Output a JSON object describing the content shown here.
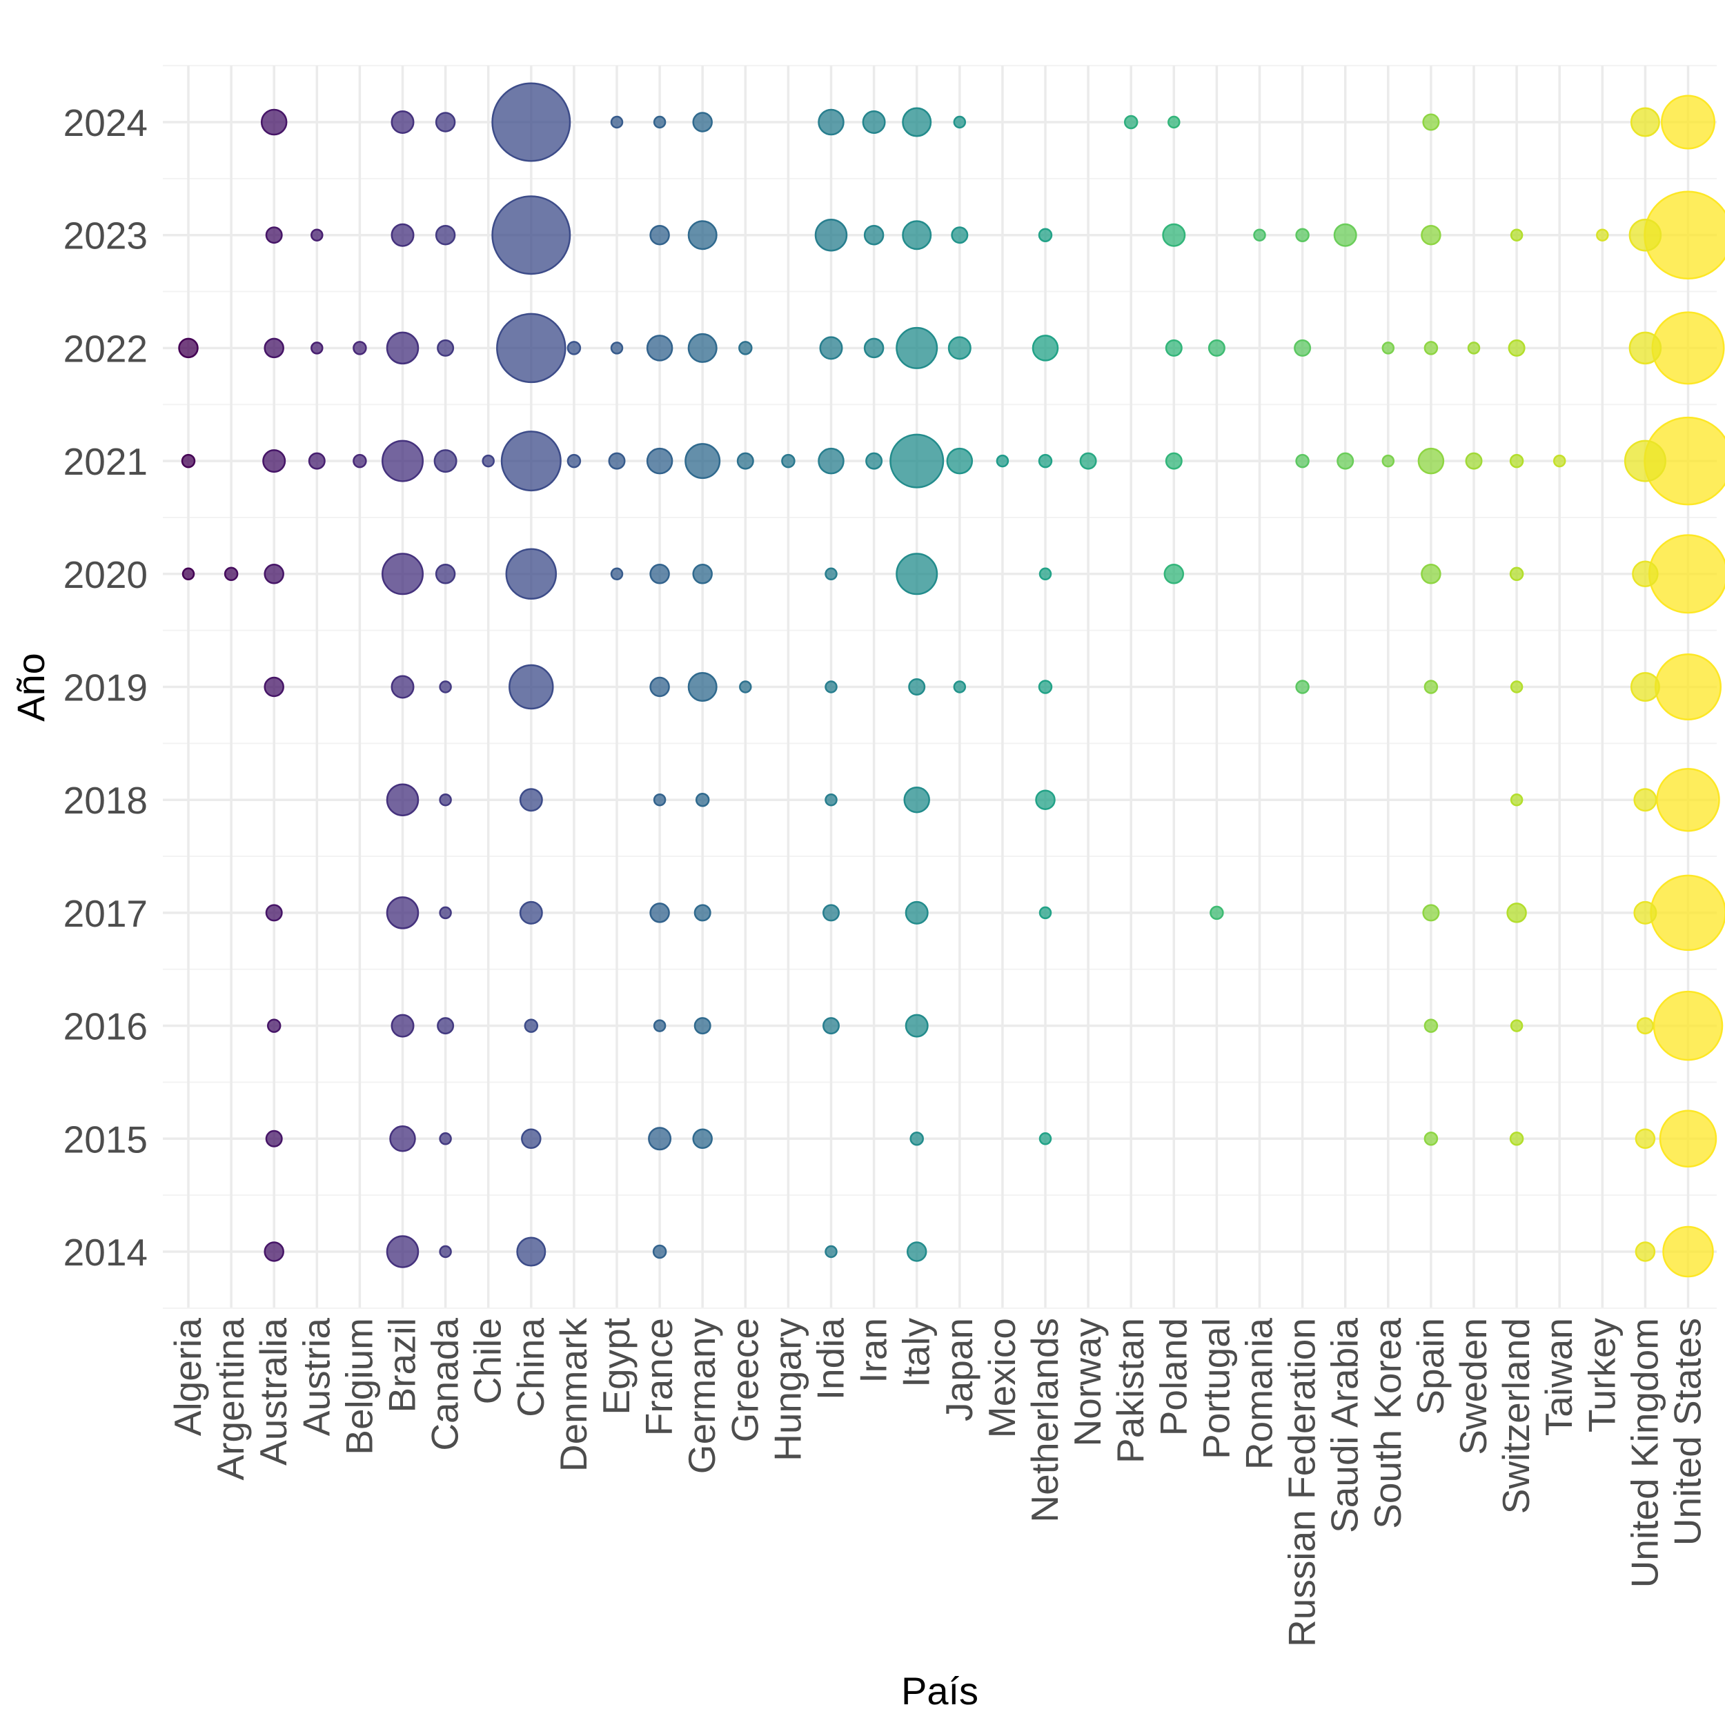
{
  "chart_data": {
    "type": "scatter",
    "xlabel": "País",
    "ylabel": "Año",
    "categories": [
      "Algeria",
      "Argentina",
      "Australia",
      "Austria",
      "Belgium",
      "Brazil",
      "Canada",
      "Chile",
      "China",
      "Denmark",
      "Egypt",
      "France",
      "Germany",
      "Greece",
      "Hungary",
      "India",
      "Iran",
      "Italy",
      "Japan",
      "Mexico",
      "Netherlands",
      "Norway",
      "Pakistan",
      "Poland",
      "Portugal",
      "Romania",
      "Russian Federation",
      "Saudi Arabia",
      "South Korea",
      "Spain",
      "Sweden",
      "Switzerland",
      "Taiwan",
      "Turkey",
      "United Kingdom",
      "United States"
    ],
    "y_ticks": [
      2014,
      2015,
      2016,
      2017,
      2018,
      2019,
      2020,
      2021,
      2022,
      2023,
      2024
    ],
    "color_scale": "viridis",
    "size_encoding": "relative count",
    "grid": true,
    "legend": "none",
    "points": [
      {
        "country": "Algeria",
        "year": 2020,
        "size": 1
      },
      {
        "country": "Algeria",
        "year": 2021,
        "size": 2
      },
      {
        "country": "Algeria",
        "year": 2022,
        "size": 3
      },
      {
        "country": "Argentina",
        "year": 2020,
        "size": 2
      },
      {
        "country": "Australia",
        "year": 2014,
        "size": 3
      },
      {
        "country": "Australia",
        "year": 2015,
        "size": 2.5
      },
      {
        "country": "Australia",
        "year": 2016,
        "size": 2
      },
      {
        "country": "Australia",
        "year": 2017,
        "size": 2.5
      },
      {
        "country": "Australia",
        "year": 2019,
        "size": 3
      },
      {
        "country": "Australia",
        "year": 2020,
        "size": 3
      },
      {
        "country": "Australia",
        "year": 2021,
        "size": 3.5
      },
      {
        "country": "Australia",
        "year": 2022,
        "size": 3
      },
      {
        "country": "Australia",
        "year": 2023,
        "size": 2.5
      },
      {
        "country": "Australia",
        "year": 2024,
        "size": 4
      },
      {
        "country": "Austria",
        "year": 2021,
        "size": 2.5
      },
      {
        "country": "Austria",
        "year": 2022,
        "size": 1
      },
      {
        "country": "Austria",
        "year": 2023,
        "size": 1
      },
      {
        "country": "Belgium",
        "year": 2021,
        "size": 2
      },
      {
        "country": "Belgium",
        "year": 2022,
        "size": 2
      },
      {
        "country": "Brazil",
        "year": 2014,
        "size": 5
      },
      {
        "country": "Brazil",
        "year": 2015,
        "size": 4
      },
      {
        "country": "Brazil",
        "year": 2016,
        "size": 3.5
      },
      {
        "country": "Brazil",
        "year": 2017,
        "size": 5
      },
      {
        "country": "Brazil",
        "year": 2018,
        "size": 5
      },
      {
        "country": "Brazil",
        "year": 2019,
        "size": 3.5
      },
      {
        "country": "Brazil",
        "year": 2020,
        "size": 6.5
      },
      {
        "country": "Brazil",
        "year": 2021,
        "size": 6.5
      },
      {
        "country": "Brazil",
        "year": 2022,
        "size": 5
      },
      {
        "country": "Brazil",
        "year": 2023,
        "size": 3.5
      },
      {
        "country": "Brazil",
        "year": 2024,
        "size": 3.5
      },
      {
        "country": "Canada",
        "year": 2014,
        "size": 1.5
      },
      {
        "country": "Canada",
        "year": 2015,
        "size": 1.5
      },
      {
        "country": "Canada",
        "year": 2016,
        "size": 2.5
      },
      {
        "country": "Canada",
        "year": 2017,
        "size": 1.5
      },
      {
        "country": "Canada",
        "year": 2018,
        "size": 1.5
      },
      {
        "country": "Canada",
        "year": 2019,
        "size": 1.5
      },
      {
        "country": "Canada",
        "year": 2020,
        "size": 3
      },
      {
        "country": "Canada",
        "year": 2021,
        "size": 3.5
      },
      {
        "country": "Canada",
        "year": 2022,
        "size": 2.5
      },
      {
        "country": "Canada",
        "year": 2023,
        "size": 3
      },
      {
        "country": "Canada",
        "year": 2024,
        "size": 3
      },
      {
        "country": "Chile",
        "year": 2021,
        "size": 1.5
      },
      {
        "country": "China",
        "year": 2014,
        "size": 4.5
      },
      {
        "country": "China",
        "year": 2015,
        "size": 3
      },
      {
        "country": "China",
        "year": 2016,
        "size": 2
      },
      {
        "country": "China",
        "year": 2017,
        "size": 3.5
      },
      {
        "country": "China",
        "year": 2018,
        "size": 3.5
      },
      {
        "country": "China",
        "year": 2019,
        "size": 7
      },
      {
        "country": "China",
        "year": 2020,
        "size": 8
      },
      {
        "country": "China",
        "year": 2021,
        "size": 9.5
      },
      {
        "country": "China",
        "year": 2022,
        "size": 11
      },
      {
        "country": "China",
        "year": 2023,
        "size": 12.5
      },
      {
        "country": "China",
        "year": 2024,
        "size": 12.5
      },
      {
        "country": "Denmark",
        "year": 2021,
        "size": 2
      },
      {
        "country": "Denmark",
        "year": 2022,
        "size": 2
      },
      {
        "country": "Egypt",
        "year": 2020,
        "size": 1.5
      },
      {
        "country": "Egypt",
        "year": 2021,
        "size": 2.5
      },
      {
        "country": "Egypt",
        "year": 2022,
        "size": 1.5
      },
      {
        "country": "Egypt",
        "year": 2024,
        "size": 1
      },
      {
        "country": "France",
        "year": 2014,
        "size": 2
      },
      {
        "country": "France",
        "year": 2015,
        "size": 3.5
      },
      {
        "country": "France",
        "year": 2016,
        "size": 1
      },
      {
        "country": "France",
        "year": 2017,
        "size": 3
      },
      {
        "country": "France",
        "year": 2018,
        "size": 1
      },
      {
        "country": "France",
        "year": 2019,
        "size": 3
      },
      {
        "country": "France",
        "year": 2020,
        "size": 3
      },
      {
        "country": "France",
        "year": 2021,
        "size": 4
      },
      {
        "country": "France",
        "year": 2022,
        "size": 4
      },
      {
        "country": "France",
        "year": 2023,
        "size": 3
      },
      {
        "country": "France",
        "year": 2024,
        "size": 1
      },
      {
        "country": "Germany",
        "year": 2015,
        "size": 3
      },
      {
        "country": "Germany",
        "year": 2016,
        "size": 2.5
      },
      {
        "country": "Germany",
        "year": 2017,
        "size": 2.5
      },
      {
        "country": "Germany",
        "year": 2018,
        "size": 2
      },
      {
        "country": "Germany",
        "year": 2019,
        "size": 4.5
      },
      {
        "country": "Germany",
        "year": 2020,
        "size": 3
      },
      {
        "country": "Germany",
        "year": 2021,
        "size": 5.5
      },
      {
        "country": "Germany",
        "year": 2022,
        "size": 4.5
      },
      {
        "country": "Germany",
        "year": 2023,
        "size": 4.5
      },
      {
        "country": "Germany",
        "year": 2024,
        "size": 3
      },
      {
        "country": "Greece",
        "year": 2019,
        "size": 1
      },
      {
        "country": "Greece",
        "year": 2021,
        "size": 2.5
      },
      {
        "country": "Greece",
        "year": 2022,
        "size": 2
      },
      {
        "country": "Hungary",
        "year": 2021,
        "size": 2
      },
      {
        "country": "India",
        "year": 2014,
        "size": 1.5
      },
      {
        "country": "India",
        "year": 2016,
        "size": 2.5
      },
      {
        "country": "India",
        "year": 2017,
        "size": 2.5
      },
      {
        "country": "India",
        "year": 2018,
        "size": 1
      },
      {
        "country": "India",
        "year": 2019,
        "size": 1.5
      },
      {
        "country": "India",
        "year": 2020,
        "size": 1.5
      },
      {
        "country": "India",
        "year": 2021,
        "size": 4
      },
      {
        "country": "India",
        "year": 2022,
        "size": 3.5
      },
      {
        "country": "India",
        "year": 2023,
        "size": 5
      },
      {
        "country": "India",
        "year": 2024,
        "size": 4
      },
      {
        "country": "Iran",
        "year": 2021,
        "size": 2.5
      },
      {
        "country": "Iran",
        "year": 2022,
        "size": 3
      },
      {
        "country": "Iran",
        "year": 2023,
        "size": 3
      },
      {
        "country": "Iran",
        "year": 2024,
        "size": 3.5
      },
      {
        "country": "Italy",
        "year": 2014,
        "size": 3
      },
      {
        "country": "Italy",
        "year": 2015,
        "size": 2
      },
      {
        "country": "Italy",
        "year": 2016,
        "size": 3.5
      },
      {
        "country": "Italy",
        "year": 2017,
        "size": 3.5
      },
      {
        "country": "Italy",
        "year": 2018,
        "size": 4
      },
      {
        "country": "Italy",
        "year": 2019,
        "size": 2.5
      },
      {
        "country": "Italy",
        "year": 2020,
        "size": 6.5
      },
      {
        "country": "Italy",
        "year": 2021,
        "size": 8.5
      },
      {
        "country": "Italy",
        "year": 2022,
        "size": 6.5
      },
      {
        "country": "Italy",
        "year": 2023,
        "size": 4.5
      },
      {
        "country": "Italy",
        "year": 2024,
        "size": 4.5
      },
      {
        "country": "Japan",
        "year": 2019,
        "size": 1
      },
      {
        "country": "Japan",
        "year": 2021,
        "size": 4
      },
      {
        "country": "Japan",
        "year": 2022,
        "size": 3.5
      },
      {
        "country": "Japan",
        "year": 2023,
        "size": 2.5
      },
      {
        "country": "Japan",
        "year": 2024,
        "size": 1
      },
      {
        "country": "Mexico",
        "year": 2021,
        "size": 1
      },
      {
        "country": "Netherlands",
        "year": 2015,
        "size": 1.5
      },
      {
        "country": "Netherlands",
        "year": 2017,
        "size": 1
      },
      {
        "country": "Netherlands",
        "year": 2018,
        "size": 3
      },
      {
        "country": "Netherlands",
        "year": 2019,
        "size": 2
      },
      {
        "country": "Netherlands",
        "year": 2020,
        "size": 1
      },
      {
        "country": "Netherlands",
        "year": 2021,
        "size": 2
      },
      {
        "country": "Netherlands",
        "year": 2022,
        "size": 4
      },
      {
        "country": "Netherlands",
        "year": 2023,
        "size": 2
      },
      {
        "country": "Norway",
        "year": 2021,
        "size": 2.5
      },
      {
        "country": "Pakistan",
        "year": 2024,
        "size": 2
      },
      {
        "country": "Poland",
        "year": 2020,
        "size": 3
      },
      {
        "country": "Poland",
        "year": 2021,
        "size": 2.5
      },
      {
        "country": "Poland",
        "year": 2022,
        "size": 2.5
      },
      {
        "country": "Poland",
        "year": 2023,
        "size": 3.5
      },
      {
        "country": "Poland",
        "year": 2024,
        "size": 1
      },
      {
        "country": "Portugal",
        "year": 2017,
        "size": 2
      },
      {
        "country": "Portugal",
        "year": 2022,
        "size": 2.5
      },
      {
        "country": "Romania",
        "year": 2023,
        "size": 1
      },
      {
        "country": "Russian Federation",
        "year": 2019,
        "size": 2
      },
      {
        "country": "Russian Federation",
        "year": 2021,
        "size": 2
      },
      {
        "country": "Russian Federation",
        "year": 2022,
        "size": 2.5
      },
      {
        "country": "Russian Federation",
        "year": 2023,
        "size": 2
      },
      {
        "country": "Saudi Arabia",
        "year": 2021,
        "size": 2.5
      },
      {
        "country": "Saudi Arabia",
        "year": 2023,
        "size": 3.5
      },
      {
        "country": "South Korea",
        "year": 2021,
        "size": 1
      },
      {
        "country": "South Korea",
        "year": 2022,
        "size": 1
      },
      {
        "country": "Spain",
        "year": 2015,
        "size": 2
      },
      {
        "country": "Spain",
        "year": 2016,
        "size": 2
      },
      {
        "country": "Spain",
        "year": 2017,
        "size": 2.5
      },
      {
        "country": "Spain",
        "year": 2019,
        "size": 2
      },
      {
        "country": "Spain",
        "year": 2020,
        "size": 3
      },
      {
        "country": "Spain",
        "year": 2021,
        "size": 4
      },
      {
        "country": "Spain",
        "year": 2022,
        "size": 2
      },
      {
        "country": "Spain",
        "year": 2023,
        "size": 3
      },
      {
        "country": "Spain",
        "year": 2024,
        "size": 2.5
      },
      {
        "country": "Sweden",
        "year": 2021,
        "size": 2.5
      },
      {
        "country": "Sweden",
        "year": 2022,
        "size": 1
      },
      {
        "country": "Switzerland",
        "year": 2015,
        "size": 2
      },
      {
        "country": "Switzerland",
        "year": 2016,
        "size": 1
      },
      {
        "country": "Switzerland",
        "year": 2017,
        "size": 3
      },
      {
        "country": "Switzerland",
        "year": 2018,
        "size": 1
      },
      {
        "country": "Switzerland",
        "year": 2019,
        "size": 1
      },
      {
        "country": "Switzerland",
        "year": 2020,
        "size": 2
      },
      {
        "country": "Switzerland",
        "year": 2021,
        "size": 2
      },
      {
        "country": "Switzerland",
        "year": 2022,
        "size": 2.5
      },
      {
        "country": "Switzerland",
        "year": 2023,
        "size": 1
      },
      {
        "country": "Taiwan",
        "year": 2021,
        "size": 1
      },
      {
        "country": "Turkey",
        "year": 2023,
        "size": 1
      },
      {
        "country": "United Kingdom",
        "year": 2014,
        "size": 3
      },
      {
        "country": "United Kingdom",
        "year": 2015,
        "size": 3
      },
      {
        "country": "United Kingdom",
        "year": 2016,
        "size": 2.5
      },
      {
        "country": "United Kingdom",
        "year": 2017,
        "size": 3.5
      },
      {
        "country": "United Kingdom",
        "year": 2018,
        "size": 3.5
      },
      {
        "country": "United Kingdom",
        "year": 2019,
        "size": 4.5
      },
      {
        "country": "United Kingdom",
        "year": 2020,
        "size": 4
      },
      {
        "country": "United Kingdom",
        "year": 2021,
        "size": 6.5
      },
      {
        "country": "United Kingdom",
        "year": 2022,
        "size": 5
      },
      {
        "country": "United Kingdom",
        "year": 2023,
        "size": 5
      },
      {
        "country": "United Kingdom",
        "year": 2024,
        "size": 4.5
      },
      {
        "country": "United States",
        "year": 2014,
        "size": 8
      },
      {
        "country": "United States",
        "year": 2015,
        "size": 9
      },
      {
        "country": "United States",
        "year": 2016,
        "size": 11
      },
      {
        "country": "United States",
        "year": 2017,
        "size": 12
      },
      {
        "country": "United States",
        "year": 2018,
        "size": 10
      },
      {
        "country": "United States",
        "year": 2019,
        "size": 10.5
      },
      {
        "country": "United States",
        "year": 2020,
        "size": 12.5
      },
      {
        "country": "United States",
        "year": 2021,
        "size": 14
      },
      {
        "country": "United States",
        "year": 2022,
        "size": 11.5
      },
      {
        "country": "United States",
        "year": 2023,
        "size": 14
      },
      {
        "country": "United States",
        "year": 2024,
        "size": 8.5
      }
    ]
  }
}
